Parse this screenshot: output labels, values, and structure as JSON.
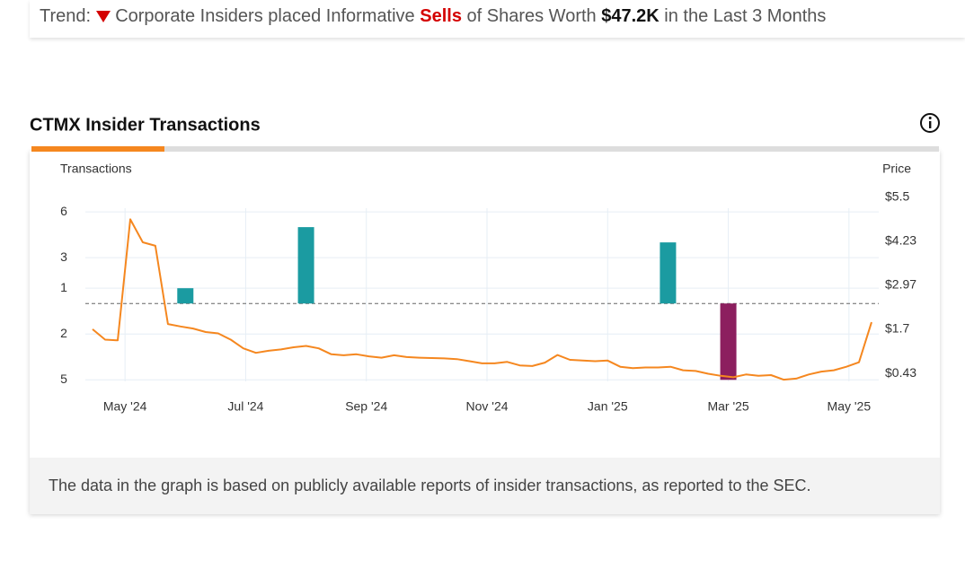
{
  "trend": {
    "label": "Trend:",
    "text_before": "Corporate Insiders placed Informative",
    "action": "Sells",
    "text_middle": "of Shares Worth",
    "amount": "$47.2K",
    "text_after": "in the Last 3 Months"
  },
  "chart_data": {
    "type": "combo",
    "title": "CTMX Insider Transactions",
    "y_label": "Transactions",
    "y2_label": "Price",
    "xlim": [
      "2024-04",
      "2025-06"
    ],
    "xticks": [
      {
        "value": "2024-05",
        "label": "May '24"
      },
      {
        "value": "2024-07",
        "label": "Jul '24"
      },
      {
        "value": "2024-09",
        "label": "Sep '24"
      },
      {
        "value": "2024-11",
        "label": "Nov '24"
      },
      {
        "value": "2025-01",
        "label": "Jan '25"
      },
      {
        "value": "2025-03",
        "label": "Mar '25"
      },
      {
        "value": "2025-05",
        "label": "May '25"
      }
    ],
    "ylim": [
      -5.1,
      7.65
    ],
    "yticks": [
      6,
      3,
      1,
      {
        "value": -2,
        "label": "2"
      },
      {
        "value": -5,
        "label": "5"
      }
    ],
    "y2lim": [
      0.2,
      5.8
    ],
    "y2ticks": [
      {
        "value": 5.5,
        "label": "$5.5"
      },
      {
        "value": 4.23,
        "label": "$4.23"
      },
      {
        "value": 2.97,
        "label": "$2.97"
      },
      {
        "value": 1.7,
        "label": "$1.7"
      },
      {
        "value": 0.43,
        "label": "$0.43"
      }
    ],
    "grid": true,
    "series": [
      {
        "type": "bar",
        "x": [
          "2024-06",
          "2024-08",
          "2025-02",
          "2025-03"
        ],
        "values": [
          1,
          5,
          4,
          -5
        ],
        "color": "#1b9ba1",
        "negative_color": "#8c1f5f"
      },
      {
        "type": "line",
        "axis": "y2",
        "color": "#f5871f",
        "values": [
          1.7,
          1.4,
          1.38,
          4.86,
          4.2,
          4.1,
          1.85,
          1.78,
          1.72,
          1.62,
          1.58,
          1.4,
          1.15,
          1.02,
          1.08,
          1.12,
          1.18,
          1.22,
          1.15,
          0.98,
          0.95,
          0.98,
          0.92,
          0.88,
          0.95,
          0.9,
          0.88,
          0.87,
          0.86,
          0.84,
          0.78,
          0.72,
          0.72,
          0.76,
          0.66,
          0.64,
          0.74,
          0.96,
          0.82,
          0.8,
          0.78,
          0.8,
          0.62,
          0.58,
          0.6,
          0.6,
          0.62,
          0.52,
          0.5,
          0.42,
          0.36,
          0.32,
          0.4,
          0.36,
          0.38,
          0.25,
          0.28,
          0.4,
          0.48,
          0.52,
          0.62,
          0.75,
          1.9
        ]
      }
    ]
  },
  "footer": "The data in the graph is based on publicly available reports of insider transactions, as reported to the SEC."
}
